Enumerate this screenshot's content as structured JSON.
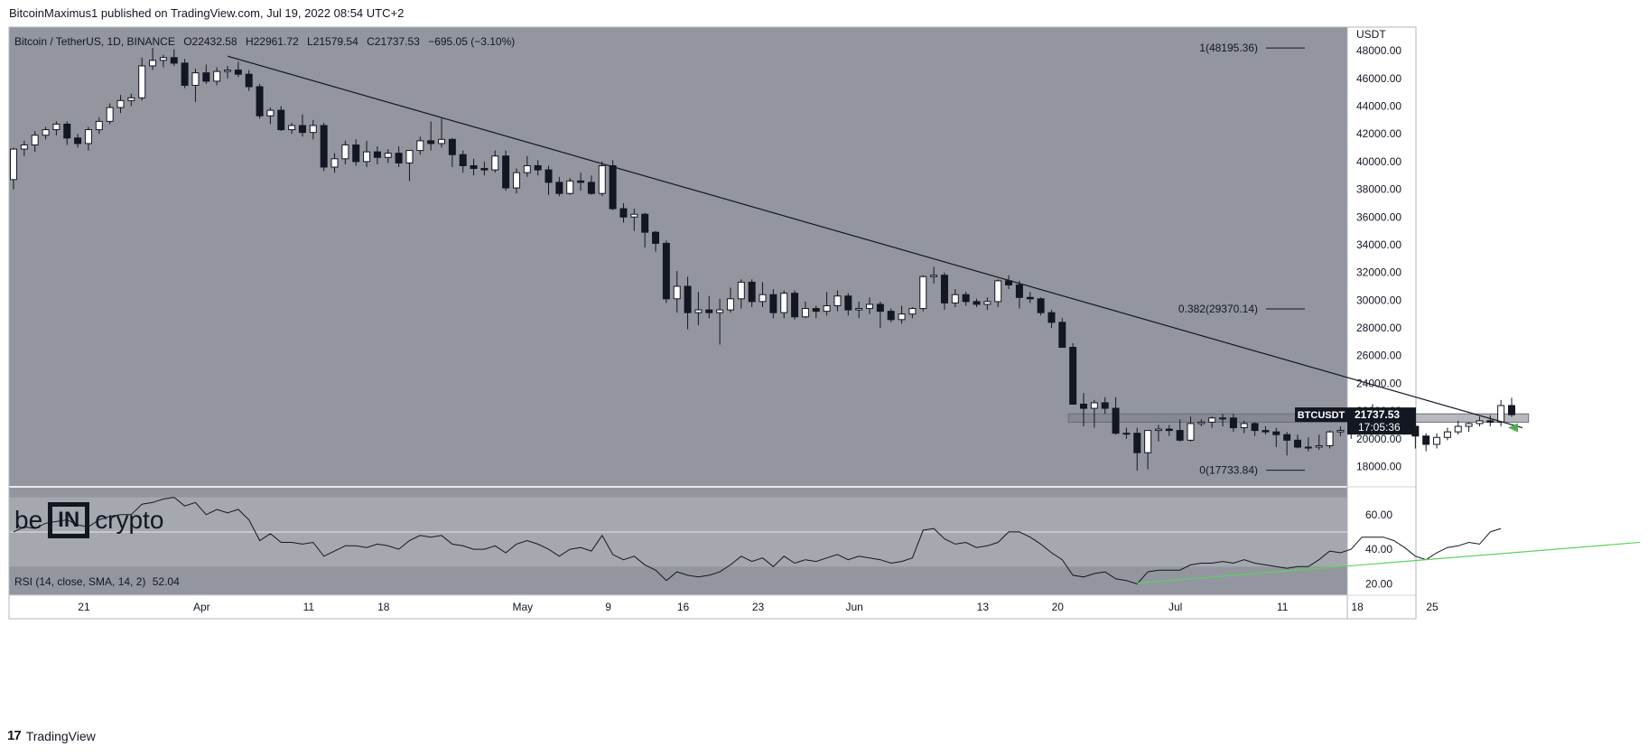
{
  "header": {
    "caption": "BitcoinMaximus1 published on TradingView.com, Jul 19, 2022 08:54 UTC+2"
  },
  "legend": {
    "symbol": "Bitcoin / TetherUS, 1D, BINANCE",
    "o_label": "O",
    "o_value": "22432.58",
    "h_label": "H",
    "h_value": "22961.72",
    "l_label": "L",
    "l_value": "21579.54",
    "c_label": "C",
    "c_value": "21737.53",
    "change": "−695.05 (−3.10%)"
  },
  "rsi_legend": {
    "label": "RSI (14, close, SMA, 14, 2)",
    "value": "52.04"
  },
  "price_axis": {
    "currency": "USDT",
    "last_price": "21737.53",
    "countdown": "17:05:36",
    "symbol_tag": "BTCUSDT"
  },
  "logo": {
    "left": "be",
    "middle": "IN",
    "right": "crypto"
  },
  "footer": {
    "brand": "TradingView",
    "logo_glyph": "17"
  },
  "colors": {
    "panel_bg": "#93969f",
    "rsi_band": "#a6a8af",
    "candle_up": "#ffffff",
    "candle_down": "#131722",
    "trendline": "#131722",
    "rsi_line": "#131722",
    "rsi_support": "#5ed15e",
    "arrow": "#4caf50"
  },
  "chart_data": {
    "type": "candlestick",
    "price_axis": {
      "ticks": [
        18000,
        20000,
        22000,
        24000,
        26000,
        28000,
        30000,
        32000,
        34000,
        36000,
        38000,
        40000,
        42000,
        44000,
        46000,
        48000
      ],
      "tick_labels": [
        "18000.00",
        "20000.00",
        "22000.00",
        "24000.00",
        "26000.00",
        "28000.00",
        "30000.00",
        "32000.00",
        "34000.00",
        "36000.00",
        "38000.00",
        "40000.00",
        "42000.00",
        "44000.00",
        "46000.00",
        "48000.00"
      ]
    },
    "rsi_axis": {
      "ticks": [
        20,
        40,
        60
      ],
      "tick_labels": [
        "20.00",
        "40.00",
        "60.00"
      ],
      "band": [
        30,
        70
      ]
    },
    "time_axis": {
      "labels": [
        "21",
        "Apr",
        "11",
        "18",
        "May",
        "9",
        "16",
        "23",
        "Jun",
        "13",
        "20",
        "Jul",
        "11",
        "18",
        "25"
      ],
      "label_day_index": [
        7,
        18,
        28,
        35,
        48,
        56,
        63,
        70,
        79,
        91,
        98,
        109,
        119,
        126,
        133
      ]
    },
    "candles": [
      {
        "o": 38700,
        "h": 41000,
        "l": 38000,
        "c": 40900
      },
      {
        "o": 40900,
        "h": 41500,
        "l": 40400,
        "c": 41200
      },
      {
        "o": 41200,
        "h": 42200,
        "l": 40700,
        "c": 41900
      },
      {
        "o": 41900,
        "h": 42500,
        "l": 41600,
        "c": 42300
      },
      {
        "o": 42300,
        "h": 42900,
        "l": 41900,
        "c": 42700
      },
      {
        "o": 42700,
        "h": 42900,
        "l": 41200,
        "c": 41700
      },
      {
        "o": 41700,
        "h": 42000,
        "l": 41000,
        "c": 41300
      },
      {
        "o": 41300,
        "h": 42500,
        "l": 40800,
        "c": 42300
      },
      {
        "o": 42300,
        "h": 43200,
        "l": 42000,
        "c": 42900
      },
      {
        "o": 42900,
        "h": 44200,
        "l": 42700,
        "c": 43900
      },
      {
        "o": 43900,
        "h": 44800,
        "l": 43500,
        "c": 44400
      },
      {
        "o": 44400,
        "h": 44900,
        "l": 44000,
        "c": 44600
      },
      {
        "o": 44600,
        "h": 47500,
        "l": 44400,
        "c": 46900
      },
      {
        "o": 46900,
        "h": 48200,
        "l": 46600,
        "c": 47300
      },
      {
        "o": 47300,
        "h": 47700,
        "l": 46800,
        "c": 47500
      },
      {
        "o": 47500,
        "h": 48100,
        "l": 46900,
        "c": 47100
      },
      {
        "o": 47100,
        "h": 47400,
        "l": 45300,
        "c": 45500
      },
      {
        "o": 45500,
        "h": 46700,
        "l": 44300,
        "c": 46400
      },
      {
        "o": 46400,
        "h": 47000,
        "l": 45600,
        "c": 45800
      },
      {
        "o": 45800,
        "h": 46800,
        "l": 45500,
        "c": 46500
      },
      {
        "o": 46500,
        "h": 46900,
        "l": 46000,
        "c": 46600
      },
      {
        "o": 46600,
        "h": 47200,
        "l": 46100,
        "c": 46300
      },
      {
        "o": 46300,
        "h": 46600,
        "l": 45100,
        "c": 45400
      },
      {
        "o": 45400,
        "h": 45600,
        "l": 43100,
        "c": 43300
      },
      {
        "o": 43300,
        "h": 43900,
        "l": 42700,
        "c": 43700
      },
      {
        "o": 43700,
        "h": 44000,
        "l": 42200,
        "c": 42300
      },
      {
        "o": 42300,
        "h": 42800,
        "l": 42000,
        "c": 42600
      },
      {
        "o": 42600,
        "h": 43400,
        "l": 41800,
        "c": 42100
      },
      {
        "o": 42100,
        "h": 43000,
        "l": 41600,
        "c": 42600
      },
      {
        "o": 42600,
        "h": 42800,
        "l": 39300,
        "c": 39600
      },
      {
        "o": 39600,
        "h": 40600,
        "l": 39200,
        "c": 40200
      },
      {
        "o": 40200,
        "h": 41500,
        "l": 39800,
        "c": 41200
      },
      {
        "o": 41200,
        "h": 41600,
        "l": 39700,
        "c": 40000
      },
      {
        "o": 40000,
        "h": 41500,
        "l": 39600,
        "c": 40700
      },
      {
        "o": 40700,
        "h": 41100,
        "l": 39800,
        "c": 40300
      },
      {
        "o": 40300,
        "h": 40900,
        "l": 39900,
        "c": 40600
      },
      {
        "o": 40600,
        "h": 41100,
        "l": 39600,
        "c": 39900
      },
      {
        "o": 39900,
        "h": 40700,
        "l": 38600,
        "c": 40800
      },
      {
        "o": 40800,
        "h": 41800,
        "l": 40500,
        "c": 41500
      },
      {
        "o": 41500,
        "h": 42900,
        "l": 40800,
        "c": 41300
      },
      {
        "o": 41300,
        "h": 43100,
        "l": 41000,
        "c": 41600
      },
      {
        "o": 41600,
        "h": 41700,
        "l": 39600,
        "c": 40500
      },
      {
        "o": 40500,
        "h": 40800,
        "l": 39200,
        "c": 39700
      },
      {
        "o": 39700,
        "h": 40200,
        "l": 39000,
        "c": 39500
      },
      {
        "o": 39500,
        "h": 40000,
        "l": 39000,
        "c": 39400
      },
      {
        "o": 39400,
        "h": 40800,
        "l": 39200,
        "c": 40400
      },
      {
        "o": 40400,
        "h": 40800,
        "l": 37900,
        "c": 38100
      },
      {
        "o": 38100,
        "h": 39500,
        "l": 37700,
        "c": 39200
      },
      {
        "o": 39200,
        "h": 40400,
        "l": 38900,
        "c": 39700
      },
      {
        "o": 39700,
        "h": 40100,
        "l": 39000,
        "c": 39400
      },
      {
        "o": 39400,
        "h": 39700,
        "l": 37600,
        "c": 38500
      },
      {
        "o": 38500,
        "h": 38900,
        "l": 37500,
        "c": 37700
      },
      {
        "o": 37700,
        "h": 38800,
        "l": 37600,
        "c": 38600
      },
      {
        "o": 38600,
        "h": 39200,
        "l": 37900,
        "c": 38500
      },
      {
        "o": 38500,
        "h": 39000,
        "l": 37600,
        "c": 37700
      },
      {
        "o": 37700,
        "h": 40000,
        "l": 37500,
        "c": 39700
      },
      {
        "o": 39700,
        "h": 40100,
        "l": 36500,
        "c": 36600
      },
      {
        "o": 36600,
        "h": 37000,
        "l": 35600,
        "c": 36000
      },
      {
        "o": 36000,
        "h": 36600,
        "l": 35000,
        "c": 36200
      },
      {
        "o": 36200,
        "h": 36300,
        "l": 33800,
        "c": 34900
      },
      {
        "o": 34900,
        "h": 35000,
        "l": 33500,
        "c": 34100
      },
      {
        "o": 34100,
        "h": 34300,
        "l": 29800,
        "c": 30100
      },
      {
        "o": 30100,
        "h": 32100,
        "l": 29100,
        "c": 31000
      },
      {
        "o": 31000,
        "h": 31700,
        "l": 27900,
        "c": 29100
      },
      {
        "o": 29100,
        "h": 30600,
        "l": 28200,
        "c": 29300
      },
      {
        "o": 29300,
        "h": 30300,
        "l": 28700,
        "c": 29100
      },
      {
        "o": 29100,
        "h": 30100,
        "l": 26800,
        "c": 29300
      },
      {
        "o": 29300,
        "h": 30900,
        "l": 29100,
        "c": 30100
      },
      {
        "o": 30100,
        "h": 31500,
        "l": 29400,
        "c": 31300
      },
      {
        "o": 31300,
        "h": 31500,
        "l": 29500,
        "c": 29900
      },
      {
        "o": 29900,
        "h": 31300,
        "l": 29500,
        "c": 30400
      },
      {
        "o": 30400,
        "h": 30800,
        "l": 28700,
        "c": 29100
      },
      {
        "o": 29100,
        "h": 30700,
        "l": 28700,
        "c": 30500
      },
      {
        "o": 30500,
        "h": 30700,
        "l": 28600,
        "c": 28800
      },
      {
        "o": 28800,
        "h": 29900,
        "l": 28700,
        "c": 29400
      },
      {
        "o": 29400,
        "h": 29600,
        "l": 28700,
        "c": 29200
      },
      {
        "o": 29200,
        "h": 30600,
        "l": 28900,
        "c": 29600
      },
      {
        "o": 29600,
        "h": 30700,
        "l": 29200,
        "c": 30300
      },
      {
        "o": 30300,
        "h": 30500,
        "l": 28900,
        "c": 29300
      },
      {
        "o": 29300,
        "h": 29900,
        "l": 28700,
        "c": 29400
      },
      {
        "o": 29400,
        "h": 30200,
        "l": 29000,
        "c": 29700
      },
      {
        "o": 29700,
        "h": 29900,
        "l": 28000,
        "c": 29200
      },
      {
        "o": 29200,
        "h": 29400,
        "l": 28400,
        "c": 28600
      },
      {
        "o": 28600,
        "h": 29600,
        "l": 28300,
        "c": 29000
      },
      {
        "o": 29000,
        "h": 29500,
        "l": 28700,
        "c": 29400
      },
      {
        "o": 29400,
        "h": 31800,
        "l": 29200,
        "c": 31700
      },
      {
        "o": 31700,
        "h": 32400,
        "l": 31200,
        "c": 31800
      },
      {
        "o": 31800,
        "h": 32000,
        "l": 29300,
        "c": 29800
      },
      {
        "o": 29800,
        "h": 30800,
        "l": 29500,
        "c": 30400
      },
      {
        "o": 30400,
        "h": 30600,
        "l": 29600,
        "c": 29900
      },
      {
        "o": 29900,
        "h": 30100,
        "l": 29500,
        "c": 29700
      },
      {
        "o": 29700,
        "h": 30200,
        "l": 29300,
        "c": 29900
      },
      {
        "o": 29900,
        "h": 31500,
        "l": 29500,
        "c": 31400
      },
      {
        "o": 31400,
        "h": 31800,
        "l": 30800,
        "c": 31100
      },
      {
        "o": 31100,
        "h": 31400,
        "l": 29400,
        "c": 30200
      },
      {
        "o": 30200,
        "h": 30600,
        "l": 29800,
        "c": 30100
      },
      {
        "o": 30100,
        "h": 30200,
        "l": 28900,
        "c": 29100
      },
      {
        "o": 29100,
        "h": 29300,
        "l": 28000,
        "c": 28400
      },
      {
        "o": 28400,
        "h": 28700,
        "l": 26600,
        "c": 26600
      },
      {
        "o": 26600,
        "h": 26900,
        "l": 22600,
        "c": 22500
      },
      {
        "o": 22500,
        "h": 23300,
        "l": 20900,
        "c": 22200
      },
      {
        "o": 22200,
        "h": 22800,
        "l": 20800,
        "c": 22600
      },
      {
        "o": 22600,
        "h": 23000,
        "l": 21800,
        "c": 22200
      },
      {
        "o": 22200,
        "h": 23000,
        "l": 20300,
        "c": 20400
      },
      {
        "o": 20400,
        "h": 20800,
        "l": 20000,
        "c": 20400
      },
      {
        "o": 20400,
        "h": 20800,
        "l": 17700,
        "c": 19000
      },
      {
        "o": 19000,
        "h": 20600,
        "l": 17800,
        "c": 20600
      },
      {
        "o": 20600,
        "h": 21000,
        "l": 19800,
        "c": 20700
      },
      {
        "o": 20700,
        "h": 21000,
        "l": 20200,
        "c": 20600
      },
      {
        "o": 20600,
        "h": 21400,
        "l": 19800,
        "c": 19900
      },
      {
        "o": 19900,
        "h": 21600,
        "l": 19800,
        "c": 21100
      },
      {
        "o": 21100,
        "h": 21400,
        "l": 20900,
        "c": 21200
      },
      {
        "o": 21200,
        "h": 21600,
        "l": 20800,
        "c": 21500
      },
      {
        "o": 21500,
        "h": 21800,
        "l": 20900,
        "c": 21500
      },
      {
        "o": 21500,
        "h": 21800,
        "l": 20500,
        "c": 20800
      },
      {
        "o": 20800,
        "h": 21300,
        "l": 20400,
        "c": 21100
      },
      {
        "o": 21100,
        "h": 21200,
        "l": 20200,
        "c": 20600
      },
      {
        "o": 20600,
        "h": 20900,
        "l": 20300,
        "c": 20500
      },
      {
        "o": 20500,
        "h": 20800,
        "l": 19400,
        "c": 20300
      },
      {
        "o": 20300,
        "h": 20500,
        "l": 18800,
        "c": 19900
      },
      {
        "o": 19900,
        "h": 20300,
        "l": 19300,
        "c": 19400
      },
      {
        "o": 19400,
        "h": 20100,
        "l": 19100,
        "c": 19400
      },
      {
        "o": 19400,
        "h": 20300,
        "l": 19200,
        "c": 19500
      },
      {
        "o": 19500,
        "h": 20600,
        "l": 19300,
        "c": 20500
      },
      {
        "o": 20500,
        "h": 20900,
        "l": 20200,
        "c": 20600
      },
      {
        "o": 20600,
        "h": 21000,
        "l": 20000,
        "c": 20800
      },
      {
        "o": 20800,
        "h": 22000,
        "l": 20700,
        "c": 21600
      },
      {
        "o": 21600,
        "h": 22500,
        "l": 21300,
        "c": 21600
      },
      {
        "o": 21600,
        "h": 21900,
        "l": 21200,
        "c": 21600
      },
      {
        "o": 21600,
        "h": 21800,
        "l": 20800,
        "c": 21500
      },
      {
        "o": 21500,
        "h": 21600,
        "l": 20300,
        "c": 20900
      },
      {
        "o": 20900,
        "h": 21000,
        "l": 19300,
        "c": 20200
      },
      {
        "o": 20200,
        "h": 20400,
        "l": 19100,
        "c": 19600
      },
      {
        "o": 19600,
        "h": 20400,
        "l": 19300,
        "c": 20100
      },
      {
        "o": 20100,
        "h": 20800,
        "l": 19900,
        "c": 20500
      },
      {
        "o": 20500,
        "h": 21300,
        "l": 20300,
        "c": 20900
      },
      {
        "o": 20900,
        "h": 21200,
        "l": 20500,
        "c": 21100
      },
      {
        "o": 21100,
        "h": 21600,
        "l": 20900,
        "c": 21300
      },
      {
        "o": 21300,
        "h": 21700,
        "l": 20900,
        "c": 21200
      },
      {
        "o": 21200,
        "h": 22800,
        "l": 20900,
        "c": 22400
      },
      {
        "o": 22400,
        "h": 22960,
        "l": 21580,
        "c": 21740
      }
    ],
    "rsi": [
      50,
      53,
      52,
      55,
      56,
      57,
      54,
      53,
      57,
      59,
      60,
      60,
      66,
      67,
      69,
      70,
      65,
      67,
      60,
      63,
      61,
      63,
      57,
      45,
      49,
      44,
      44,
      43,
      44,
      36,
      39,
      42,
      42,
      41,
      43,
      42,
      40,
      45,
      48,
      47,
      48,
      43,
      42,
      40,
      40,
      42,
      38,
      43,
      45,
      43,
      40,
      36,
      40,
      41,
      39,
      48,
      37,
      34,
      36,
      31,
      28,
      22,
      27,
      25,
      24,
      25,
      27,
      31,
      36,
      33,
      35,
      30,
      36,
      32,
      34,
      33,
      35,
      37,
      34,
      36,
      35,
      34,
      32,
      33,
      35,
      51,
      52,
      46,
      43,
      44,
      41,
      42,
      44,
      50,
      50,
      47,
      43,
      38,
      34,
      25,
      24,
      26,
      27,
      23,
      22,
      20,
      27,
      28,
      28,
      28,
      31,
      32,
      32,
      33,
      32,
      34,
      32,
      31,
      30,
      29,
      30,
      30,
      34,
      39,
      38,
      40,
      47,
      47,
      47,
      45,
      41,
      36,
      34,
      38,
      41,
      42,
      44,
      43,
      50,
      52
    ],
    "rsi_support": {
      "from": {
        "day": 105,
        "value": 20.5
      },
      "to": {
        "day": 152,
        "value": 44
      }
    },
    "trendline": {
      "from": {
        "day": 20,
        "price": 47600
      },
      "to": {
        "day": 141,
        "price": 20800
      }
    },
    "horizontal_zone": {
      "low": 21200,
      "high": 21800,
      "from_day": 99,
      "to_day": 142
    },
    "fib_levels": [
      {
        "label": "1(48195.36)",
        "price": 48195.36
      },
      {
        "label": "0.382(29370.14)",
        "price": 29370.14
      },
      {
        "label": "0(17733.84)",
        "price": 17733.84
      }
    ]
  }
}
